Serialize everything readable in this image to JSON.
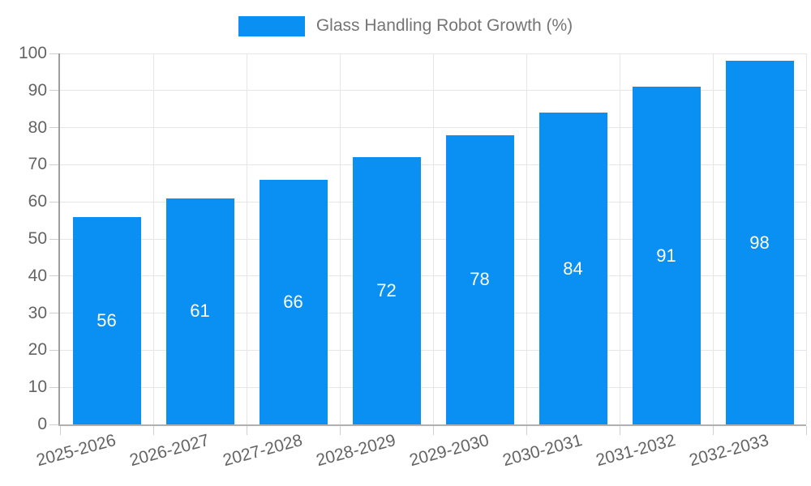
{
  "legend": {
    "label": "Glass Handling Robot Growth (%)"
  },
  "colors": {
    "bar": "#0a90f2",
    "value_label": "#ffffff",
    "axis_label": "#646464",
    "legend_text": "#757575",
    "gridline": "#e6e6e6",
    "axis_line": "#9e9e9e"
  },
  "chart_data": {
    "type": "bar",
    "title": "Glass Handling Robot Growth (%)",
    "categories": [
      "2025-2026",
      "2026-2027",
      "2027-2028",
      "2028-2029",
      "2029-2030",
      "2030-2031",
      "2031-2032",
      "2032-2033"
    ],
    "values": [
      56,
      61,
      66,
      72,
      78,
      84,
      91,
      98
    ],
    "series_color": "#0a90f2",
    "value_labels_shown_inside_bars": true,
    "xlabel": "",
    "ylabel": "",
    "ylim": [
      0,
      100
    ],
    "ytick_step": 10,
    "ytick_labels": [
      "0",
      "10",
      "20",
      "30",
      "40",
      "50",
      "60",
      "70",
      "80",
      "90",
      "100"
    ],
    "grid": true,
    "x_label_rotation_deg": -15,
    "legend_position": "top-center"
  }
}
